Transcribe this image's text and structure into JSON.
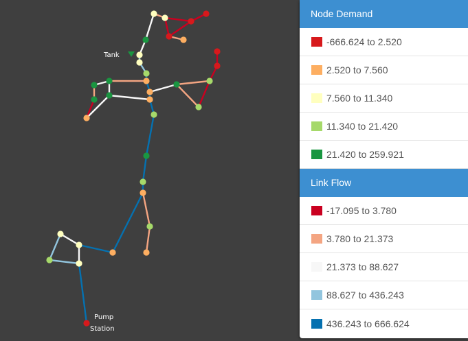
{
  "map": {
    "tank_label": "Tank",
    "pump_label_line1": "Pump",
    "pump_label_line2": "Station"
  },
  "colors": {
    "background": "#3f3f3f",
    "header": "#3d8fd1"
  },
  "legend": {
    "node_demand": {
      "title": "Node Demand",
      "items": [
        {
          "range": "-666.624 to 2.520",
          "color": "#d7191c"
        },
        {
          "range": "2.520 to 7.560",
          "color": "#fdae61"
        },
        {
          "range": "7.560 to 11.340",
          "color": "#ffffbf"
        },
        {
          "range": "11.340 to 21.420",
          "color": "#a6d96a"
        },
        {
          "range": "21.420 to 259.921",
          "color": "#1a9641"
        }
      ]
    },
    "link_flow": {
      "title": "Link Flow",
      "items": [
        {
          "range": "-17.095 to 3.780",
          "color": "#ca0020"
        },
        {
          "range": "3.780 to 21.373",
          "color": "#f4a582"
        },
        {
          "range": "21.373 to 88.627",
          "color": "#f7f7f7"
        },
        {
          "range": "88.627 to 436.243",
          "color": "#92c5de"
        },
        {
          "range": "436.243 to 666.624",
          "color": "#0571b0"
        }
      ]
    }
  }
}
